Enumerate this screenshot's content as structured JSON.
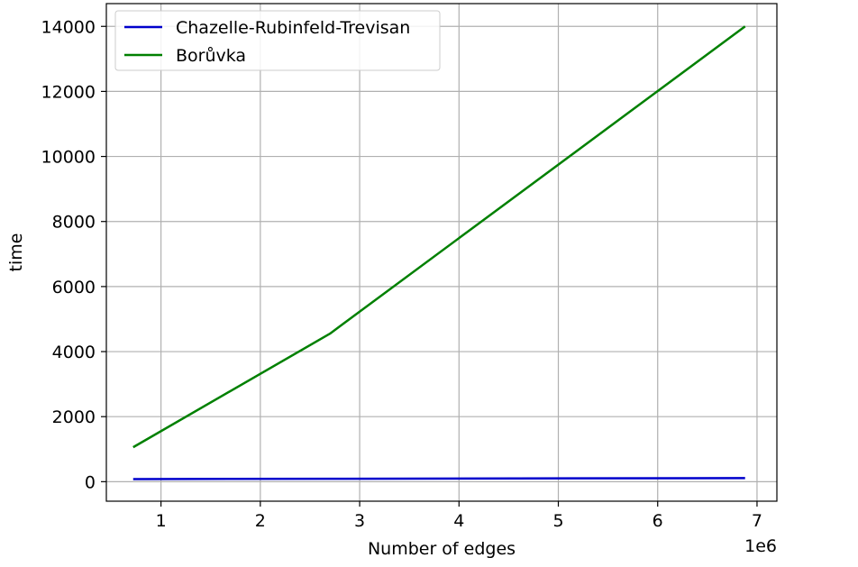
{
  "chart_data": {
    "type": "line",
    "xlabel": "Number of edges",
    "ylabel": "time",
    "x_offset_label": "1e6",
    "xlim": [
      0.45,
      7.2
    ],
    "ylim": [
      -600,
      14700
    ],
    "xticks": [
      1,
      2,
      3,
      4,
      5,
      6,
      7
    ],
    "yticks": [
      0,
      2000,
      4000,
      6000,
      8000,
      10000,
      12000,
      14000
    ],
    "xtick_labels": [
      "1",
      "2",
      "3",
      "4",
      "5",
      "6",
      "7"
    ],
    "ytick_labels": [
      "0",
      "2000",
      "4000",
      "6000",
      "8000",
      "10000",
      "12000",
      "14000"
    ],
    "grid": true,
    "legend_position": "upper-left",
    "series": [
      {
        "name": "Chazelle-Rubinfeld-Trevisan",
        "color": "#0000cc",
        "x": [
          0.72,
          2.7,
          6.88
        ],
        "y": [
          80,
          90,
          110
        ]
      },
      {
        "name": "Borůvka",
        "color": "#008000",
        "x": [
          0.72,
          2.7,
          6.88
        ],
        "y": [
          1060,
          4550,
          14000
        ]
      }
    ]
  }
}
